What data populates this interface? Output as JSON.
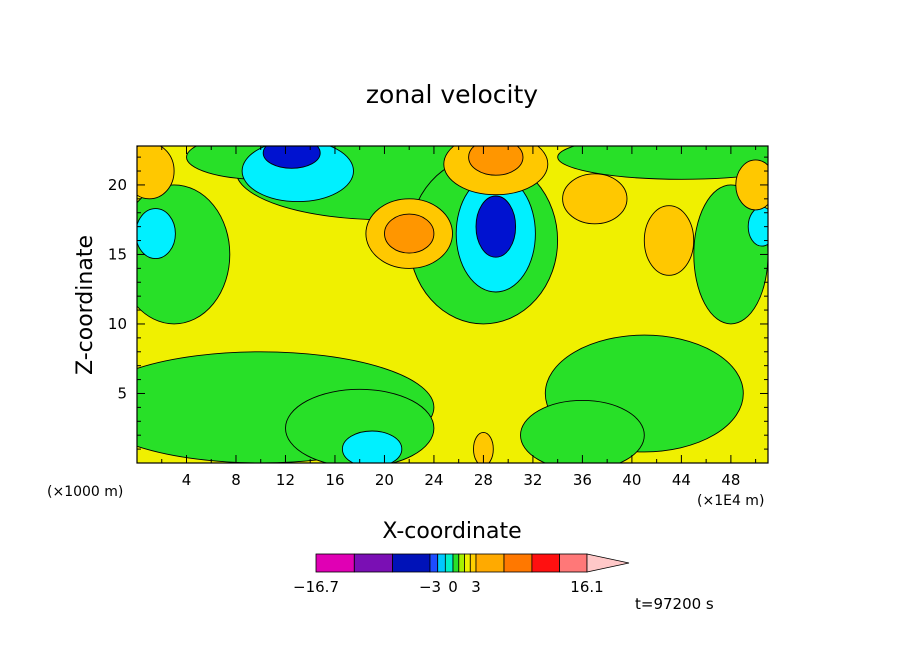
{
  "chart_data": {
    "type": "heatmap",
    "title": "zonal velocity",
    "xlabel": "X-coordinate",
    "ylabel": "Z-coordinate",
    "x_unit": "(×1000 m)",
    "x_scale_note": "(×1E4 m)",
    "xlim": [
      0,
      51
    ],
    "ylim": [
      0,
      22.8
    ],
    "x_ticks": [
      "4",
      "8",
      "12",
      "16",
      "20",
      "24",
      "28",
      "32",
      "36",
      "40",
      "44",
      "48"
    ],
    "y_ticks": [
      "5",
      "10",
      "15",
      "20"
    ],
    "levels": [
      -16.7,
      -3,
      0,
      3,
      16.1
    ],
    "colorbar_labels": [
      "-16.7",
      "-3",
      "0",
      "3",
      "16.1"
    ],
    "colorbar_colors": [
      "#e000b4",
      "#7a0fb4",
      "#0012b8",
      "#1d4cff",
      "#00c8ff",
      "#00f0c8",
      "#28e028",
      "#a6f000",
      "#f0f000",
      "#ffd000",
      "#ffaa00",
      "#ff7800",
      "#ff1010",
      "#ff7878",
      "#ffc8c8"
    ],
    "annotation_time": "t=97200 s",
    "blobs": [
      {
        "x": 10,
        "z": 4,
        "rx": 14,
        "ry": 4,
        "v": 1
      },
      {
        "x": 18,
        "z": 2.5,
        "rx": 6,
        "ry": 2.8,
        "v": 1
      },
      {
        "x": 19,
        "z": 1,
        "rx": 2.4,
        "ry": 1.3,
        "v": -1
      },
      {
        "x": 41,
        "z": 5,
        "rx": 8,
        "ry": 4.2,
        "v": 1
      },
      {
        "x": 36,
        "z": 2,
        "rx": 5,
        "ry": 2.5,
        "v": 1
      },
      {
        "x": 3,
        "z": 15,
        "rx": 4.5,
        "ry": 5,
        "v": 1
      },
      {
        "x": 20,
        "z": 21,
        "rx": 12,
        "ry": 3.5,
        "v": 1
      },
      {
        "x": 28,
        "z": 16,
        "rx": 6,
        "ry": 6,
        "v": 1
      },
      {
        "x": 48,
        "z": 15,
        "rx": 3,
        "ry": 5,
        "v": 1
      },
      {
        "x": 44,
        "z": 22,
        "rx": 10,
        "ry": 1.6,
        "v": 1
      },
      {
        "x": 10,
        "z": 22,
        "rx": 6,
        "ry": 1.6,
        "v": 1
      },
      {
        "x": 13,
        "z": 21,
        "rx": 4.5,
        "ry": 2.2,
        "v": -1
      },
      {
        "x": 12.5,
        "z": 22.3,
        "rx": 2.3,
        "ry": 1.1,
        "v": -2
      },
      {
        "x": 29,
        "z": 16.5,
        "rx": 3.2,
        "ry": 4.2,
        "v": -1
      },
      {
        "x": 29,
        "z": 17,
        "rx": 1.6,
        "ry": 2.2,
        "v": -2
      },
      {
        "x": 1.5,
        "z": 16.5,
        "rx": 1.6,
        "ry": 1.8,
        "v": -1
      },
      {
        "x": 50.5,
        "z": 17,
        "rx": 1.1,
        "ry": 1.4,
        "v": -1
      },
      {
        "x": 22,
        "z": 16.5,
        "rx": 3.5,
        "ry": 2.5,
        "v": 2
      },
      {
        "x": 22,
        "z": 16.5,
        "rx": 2,
        "ry": 1.4,
        "v": 3
      },
      {
        "x": 29,
        "z": 21.5,
        "rx": 4.2,
        "ry": 2.2,
        "v": 2
      },
      {
        "x": 29,
        "z": 22,
        "rx": 2.2,
        "ry": 1.3,
        "v": 3
      },
      {
        "x": 37,
        "z": 19,
        "rx": 2.6,
        "ry": 1.8,
        "v": 2
      },
      {
        "x": 43,
        "z": 16,
        "rx": 2,
        "ry": 2.5,
        "v": 2
      },
      {
        "x": 1,
        "z": 21,
        "rx": 2,
        "ry": 2,
        "v": 2
      },
      {
        "x": 50,
        "z": 20,
        "rx": 1.6,
        "ry": 1.8,
        "v": 2
      },
      {
        "x": 28,
        "z": 1,
        "rx": 0.8,
        "ry": 1.2,
        "v": 2
      }
    ]
  }
}
